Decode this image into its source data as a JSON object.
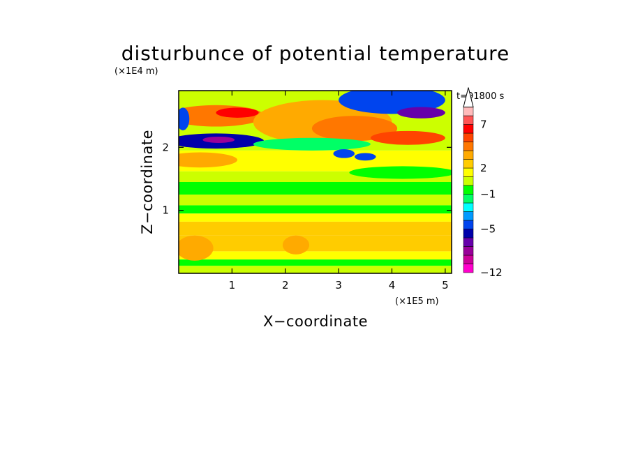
{
  "chart_data": {
    "type": "heatmap",
    "title": "disturbunce of potential temperature",
    "xlabel": "X−coordinate",
    "ylabel": "Z−coordinate",
    "x_unit": "(×1E5 m)",
    "y_unit": "(×1E4 m)",
    "time_label": "t=91800 s",
    "xlim": [
      0,
      5.12
    ],
    "ylim": [
      0,
      2.9
    ],
    "x_ticks": [
      1,
      2,
      3,
      4,
      5
    ],
    "x_tick_labels": [
      "1",
      "2",
      "3",
      "4",
      "5"
    ],
    "y_ticks": [
      1,
      2
    ],
    "y_tick_labels": [
      "1",
      "2"
    ],
    "colorbar": {
      "levels": [
        -12,
        -10,
        -8,
        -7,
        -6,
        -5,
        -4,
        -3,
        -2,
        -1,
        0,
        1,
        2,
        3,
        4,
        5,
        6,
        7,
        8,
        10
      ],
      "tick_values": [
        -12,
        -5,
        -1,
        2,
        7
      ],
      "tick_labels": [
        "−12",
        "−5",
        "−1",
        "2",
        "7"
      ],
      "colors": [
        "#ff00cc",
        "#cc0099",
        "#990099",
        "#6600aa",
        "#0000aa",
        "#0044ee",
        "#0099ff",
        "#00ffff",
        "#00ff66",
        "#00ff00",
        "#ccff00",
        "#ffff00",
        "#ffcc00",
        "#ffaa00",
        "#ff7700",
        "#ff4400",
        "#ff0000",
        "#ff5555",
        "#ffbbbb"
      ],
      "extend": "max"
    },
    "grid": false,
    "bands": [
      {
        "z": [
          0.0,
          0.12
        ],
        "value": 0.5
      },
      {
        "z": [
          0.12,
          0.22
        ],
        "value": -0.5
      },
      {
        "z": [
          0.22,
          0.35
        ],
        "value": 1.5
      },
      {
        "z": [
          0.35,
          0.6
        ],
        "value": 2.6
      },
      {
        "z": [
          0.6,
          0.82
        ],
        "value": 2.2
      },
      {
        "z": [
          0.82,
          0.95
        ],
        "value": 1.2
      },
      {
        "z": [
          0.95,
          1.08
        ],
        "value": -0.5
      },
      {
        "z": [
          1.08,
          1.25
        ],
        "value": 0.5
      },
      {
        "z": [
          1.25,
          1.45
        ],
        "value": -0.4
      },
      {
        "z": [
          1.45,
          1.62
        ],
        "value": 0.6
      },
      {
        "z": [
          1.62,
          1.95
        ],
        "value": 1.6
      },
      {
        "z": [
          1.95,
          2.9
        ],
        "value": 0.8
      }
    ],
    "features": [
      {
        "x": 0.7,
        "z": 2.5,
        "rx": 0.9,
        "rz": 0.17,
        "value": 4.5
      },
      {
        "x": 1.1,
        "z": 2.55,
        "rx": 0.4,
        "rz": 0.08,
        "value": 6.5
      },
      {
        "x": 0.7,
        "z": 2.1,
        "rx": 0.9,
        "rz": 0.12,
        "value": -6
      },
      {
        "x": 0.75,
        "z": 2.12,
        "rx": 0.3,
        "rz": 0.05,
        "value": -8
      },
      {
        "x": 0.4,
        "z": 1.8,
        "rx": 0.7,
        "rz": 0.12,
        "value": 3.5
      },
      {
        "x": 0.08,
        "z": 2.45,
        "rx": 0.12,
        "rz": 0.18,
        "value": -5
      },
      {
        "x": 2.7,
        "z": 2.4,
        "rx": 1.3,
        "rz": 0.35,
        "value": 3.5
      },
      {
        "x": 3.3,
        "z": 2.3,
        "rx": 0.8,
        "rz": 0.2,
        "value": 4.5
      },
      {
        "x": 4.0,
        "z": 2.75,
        "rx": 1.0,
        "rz": 0.22,
        "value": -5
      },
      {
        "x": 4.55,
        "z": 2.55,
        "rx": 0.45,
        "rz": 0.09,
        "value": -7
      },
      {
        "x": 4.3,
        "z": 2.15,
        "rx": 0.7,
        "rz": 0.11,
        "value": 5
      },
      {
        "x": 2.5,
        "z": 2.05,
        "rx": 1.1,
        "rz": 0.1,
        "value": -2
      },
      {
        "x": 3.1,
        "z": 1.9,
        "rx": 0.2,
        "rz": 0.07,
        "value": -5
      },
      {
        "x": 3.5,
        "z": 1.85,
        "rx": 0.2,
        "rz": 0.06,
        "value": -5
      },
      {
        "x": 4.2,
        "z": 1.6,
        "rx": 1.0,
        "rz": 0.1,
        "value": -0.5
      },
      {
        "x": 0.3,
        "z": 0.4,
        "rx": 0.35,
        "rz": 0.2,
        "value": 3.5
      },
      {
        "x": 2.2,
        "z": 0.45,
        "rx": 0.25,
        "rz": 0.15,
        "value": 3.5
      }
    ]
  }
}
